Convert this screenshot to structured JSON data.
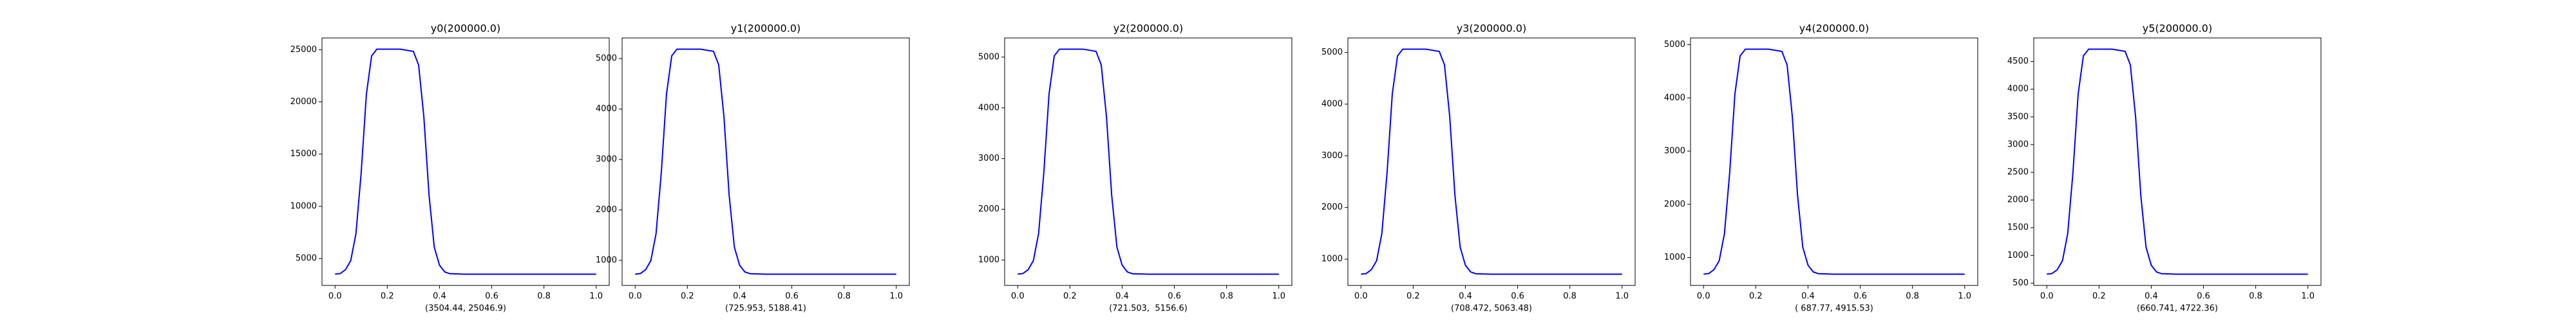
{
  "chart_data": [
    {
      "type": "line",
      "title": "y0(200000.0)",
      "xlabel": "(3504.44, 25046.9)",
      "x": [
        0,
        0.02,
        0.04,
        0.06,
        0.08,
        0.1,
        0.12,
        0.14,
        0.16,
        0.18,
        0.2,
        0.25,
        0.3,
        0.32,
        0.34,
        0.36,
        0.38,
        0.4,
        0.42,
        0.44,
        0.5,
        0.6,
        0.7,
        0.8,
        0.9,
        1
      ],
      "series": [
        {
          "name": "y0",
          "color": "#0000ff",
          "values": [
            3504,
            3569,
            3935,
            4797,
            7382,
            13198,
            20738,
            24400,
            25047,
            25047,
            25047,
            25047,
            24831,
            23538,
            18584,
            11044,
            6089,
            4366,
            3720,
            3548,
            3504,
            3504,
            3504,
            3504,
            3504,
            3504
          ]
        }
      ],
      "xlim": [
        -0.05,
        1.05
      ],
      "xticks": [
        {
          "value": 0,
          "label": "0.0"
        },
        0.2,
        0.4,
        0.6,
        0.8,
        {
          "value": 1,
          "label": "1.0"
        }
      ],
      "ylim": [
        2427,
        26124
      ],
      "yticks": [
        5000,
        10000,
        15000,
        20000,
        25000
      ]
    },
    {
      "type": "line",
      "title": "y1(200000.0)",
      "xlabel": "(725.953, 5188.41)",
      "x": [
        0,
        0.02,
        0.04,
        0.06,
        0.08,
        0.1,
        0.12,
        0.14,
        0.16,
        0.18,
        0.2,
        0.25,
        0.3,
        0.32,
        0.34,
        0.36,
        0.38,
        0.4,
        0.42,
        0.44,
        0.5,
        0.6,
        0.7,
        0.8,
        0.9,
        1
      ],
      "series": [
        {
          "name": "y1",
          "color": "#0000ff",
          "values": [
            726,
            739,
            815,
            994,
            1529,
            2734,
            4296,
            5055,
            5188,
            5188,
            5188,
            5188,
            5144,
            4876,
            3850,
            2288,
            1261,
            904,
            771,
            735,
            726,
            726,
            726,
            726,
            726,
            726
          ]
        }
      ],
      "xlim": [
        -0.05,
        1.05
      ],
      "xticks": [
        {
          "value": 0,
          "label": "0.0"
        },
        0.2,
        0.4,
        0.6,
        0.8,
        {
          "value": 1,
          "label": "1.0"
        }
      ],
      "ylim": [
        503,
        5411
      ],
      "yticks": [
        1000,
        2000,
        3000,
        4000,
        5000
      ]
    },
    {
      "type": "line",
      "title": "y2(200000.0)",
      "xlabel": "(721.503,  5156.6)",
      "x": [
        0,
        0.02,
        0.04,
        0.06,
        0.08,
        0.1,
        0.12,
        0.14,
        0.16,
        0.18,
        0.2,
        0.25,
        0.3,
        0.32,
        0.34,
        0.36,
        0.38,
        0.4,
        0.42,
        0.44,
        0.5,
        0.6,
        0.7,
        0.8,
        0.9,
        1
      ],
      "series": [
        {
          "name": "y2",
          "color": "#0000ff",
          "values": [
            722,
            735,
            810,
            988,
            1520,
            2717,
            4270,
            5024,
            5157,
            5157,
            5157,
            5157,
            5113,
            4846,
            3826,
            2274,
            1254,
            899,
            766,
            730,
            722,
            722,
            722,
            722,
            722,
            722
          ]
        }
      ],
      "xlim": [
        -0.05,
        1.05
      ],
      "xticks": [
        {
          "value": 0,
          "label": "0.0"
        },
        0.2,
        0.4,
        0.6,
        0.8,
        {
          "value": 1,
          "label": "1.0"
        }
      ],
      "ylim": [
        500,
        5378
      ],
      "yticks": [
        1000,
        2000,
        3000,
        4000,
        5000
      ]
    },
    {
      "type": "line",
      "title": "y3(200000.0)",
      "xlabel": "(708.472, 5063.48)",
      "x": [
        0,
        0.02,
        0.04,
        0.06,
        0.08,
        0.1,
        0.12,
        0.14,
        0.16,
        0.18,
        0.2,
        0.25,
        0.3,
        0.32,
        0.34,
        0.36,
        0.38,
        0.4,
        0.42,
        0.44,
        0.5,
        0.6,
        0.7,
        0.8,
        0.9,
        1
      ],
      "series": [
        {
          "name": "y3",
          "color": "#0000ff",
          "values": [
            708,
            721,
            796,
            970,
            1492,
            2668,
            4192,
            4933,
            5063,
            5063,
            5063,
            5063,
            5020,
            4759,
            3757,
            2233,
            1231,
            883,
            752,
            717,
            708,
            708,
            708,
            708,
            708,
            708
          ]
        }
      ],
      "xlim": [
        -0.05,
        1.05
      ],
      "xticks": [
        {
          "value": 0,
          "label": "0.0"
        },
        0.2,
        0.4,
        0.6,
        0.8,
        {
          "value": 1,
          "label": "1.0"
        }
      ],
      "ylim": [
        491,
        5281
      ],
      "yticks": [
        1000,
        2000,
        3000,
        4000,
        5000
      ]
    },
    {
      "type": "line",
      "title": "y4(200000.0)",
      "xlabel": "( 687.77, 4915.53)",
      "x": [
        0,
        0.02,
        0.04,
        0.06,
        0.08,
        0.1,
        0.12,
        0.14,
        0.16,
        0.18,
        0.2,
        0.25,
        0.3,
        0.32,
        0.34,
        0.36,
        0.38,
        0.4,
        0.42,
        0.44,
        0.5,
        0.6,
        0.7,
        0.8,
        0.9,
        1
      ],
      "series": [
        {
          "name": "y4",
          "color": "#0000ff",
          "values": [
            688,
            700,
            772,
            941,
            1449,
            2590,
            4070,
            4789,
            4916,
            4916,
            4916,
            4916,
            4873,
            4620,
            3647,
            2167,
            1195,
            857,
            730,
            696,
            688,
            688,
            688,
            688,
            688,
            688
          ]
        }
      ],
      "xlim": [
        -0.05,
        1.05
      ],
      "xticks": [
        {
          "value": 0,
          "label": "0.0"
        },
        0.2,
        0.4,
        0.6,
        0.8,
        {
          "value": 1,
          "label": "1.0"
        }
      ],
      "ylim": [
        476,
        5127
      ],
      "yticks": [
        1000,
        2000,
        3000,
        4000,
        5000
      ]
    },
    {
      "type": "line",
      "title": "y5(200000.0)",
      "xlabel": "(660.741, 4722.36)",
      "x": [
        0,
        0.02,
        0.04,
        0.06,
        0.08,
        0.1,
        0.12,
        0.14,
        0.16,
        0.18,
        0.2,
        0.25,
        0.3,
        0.32,
        0.34,
        0.36,
        0.38,
        0.4,
        0.42,
        0.44,
        0.5,
        0.6,
        0.7,
        0.8,
        0.9,
        1
      ],
      "series": [
        {
          "name": "y5",
          "color": "#0000ff",
          "values": [
            661,
            673,
            742,
            904,
            1392,
            2488,
            3910,
            4600,
            4722,
            4722,
            4722,
            4722,
            4682,
            4438,
            3504,
            2082,
            1148,
            823,
            701,
            669,
            661,
            661,
            661,
            661,
            661,
            661
          ]
        }
      ],
      "xlim": [
        -0.05,
        1.05
      ],
      "xticks": [
        {
          "value": 0,
          "label": "0.0"
        },
        0.2,
        0.4,
        0.6,
        0.8,
        {
          "value": 1,
          "label": "1.0"
        }
      ],
      "ylim": [
        458,
        4925
      ],
      "yticks": [
        500,
        1000,
        1500,
        2000,
        2500,
        3000,
        3500,
        4000,
        4500
      ]
    }
  ]
}
